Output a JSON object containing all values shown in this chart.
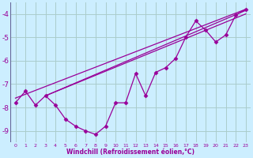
{
  "background_color": "#cceeff",
  "grid_color": "#aacccc",
  "line_color": "#990099",
  "curve_x": [
    0,
    1,
    2,
    3,
    4,
    5,
    6,
    7,
    8,
    9,
    10,
    11,
    12,
    13,
    14,
    15,
    16,
    17,
    18,
    19,
    20,
    21,
    22,
    23
  ],
  "curve_y": [
    -7.8,
    -7.3,
    -7.9,
    -7.5,
    -7.9,
    -8.5,
    -8.8,
    -9.0,
    -9.15,
    -8.8,
    -7.8,
    -7.8,
    -6.55,
    -7.5,
    -6.5,
    -6.3,
    -5.9,
    -5.0,
    -4.3,
    -4.7,
    -5.2,
    -4.9,
    -4.05,
    -3.8
  ],
  "line1_x": [
    0,
    23
  ],
  "line1_y": [
    -7.6,
    -3.8
  ],
  "line2_x": [
    3,
    23
  ],
  "line2_y": [
    -7.5,
    -4.0
  ],
  "line3_x": [
    3,
    23
  ],
  "line3_y": [
    -7.5,
    -3.85
  ],
  "xlabel": "Windchill (Refroidissement éolien,°C)",
  "xlim": [
    -0.5,
    23.5
  ],
  "ylim": [
    -9.5,
    -3.5
  ],
  "yticks": [
    -9,
    -8,
    -7,
    -6,
    -5,
    -4
  ],
  "xticks": [
    0,
    1,
    2,
    3,
    4,
    5,
    6,
    7,
    8,
    9,
    10,
    11,
    12,
    13,
    14,
    15,
    16,
    17,
    18,
    19,
    20,
    21,
    22,
    23
  ]
}
